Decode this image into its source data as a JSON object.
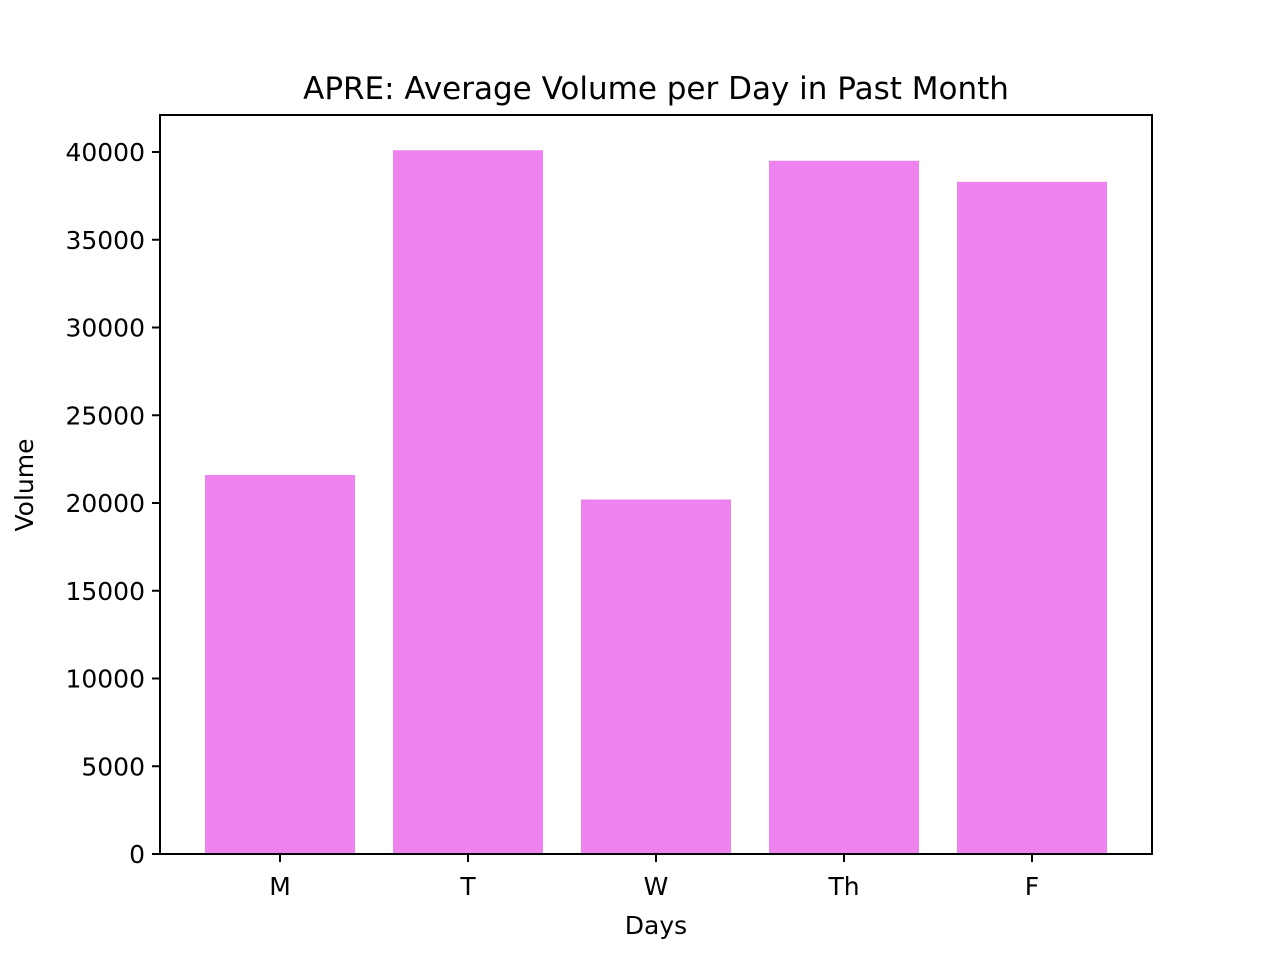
{
  "chart_data": {
    "type": "bar",
    "title": "APRE: Average Volume per Day in Past Month",
    "xlabel": "Days",
    "ylabel": "Volume",
    "categories": [
      "M",
      "T",
      "W",
      "Th",
      "F"
    ],
    "values": [
      21600,
      40100,
      20200,
      39500,
      38300
    ],
    "ylim": [
      0,
      42000
    ],
    "yticks": [
      0,
      5000,
      10000,
      15000,
      20000,
      25000,
      30000,
      35000,
      40000
    ],
    "ytick_labels": [
      "0",
      "5000",
      "10000",
      "15000",
      "20000",
      "25000",
      "30000",
      "35000",
      "40000"
    ],
    "bar_color": "#ee82ee",
    "grid": false,
    "legend": "none"
  }
}
